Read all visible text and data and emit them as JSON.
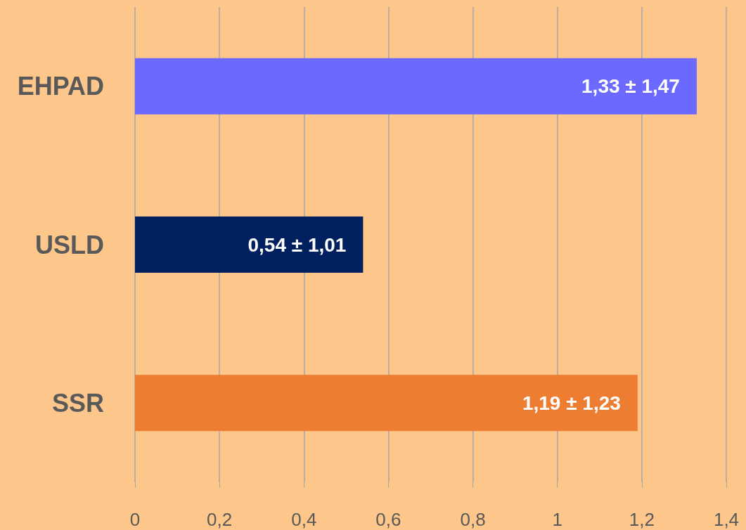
{
  "chart_data": {
    "type": "bar",
    "orientation": "horizontal",
    "categories": [
      "EHPAD",
      "USLD",
      "SSR"
    ],
    "values": [
      1.33,
      0.54,
      1.19
    ],
    "colors": [
      "#6b69ff",
      "#002060",
      "#ed7d31"
    ],
    "value_labels": [
      "1,33 ± 1,47",
      "0,54 ± 1,01",
      "1,19 ± 1,23"
    ],
    "xlim": [
      0,
      1.4
    ],
    "xticks": [
      0,
      {
        "value": 0.2,
        "label": "0,2"
      },
      {
        "value": 0.4,
        "label": "0,4"
      },
      {
        "value": 0.6,
        "label": "0,6"
      },
      {
        "value": 0.8,
        "label": "0,8"
      },
      1,
      {
        "value": 1.2,
        "label": "1,2"
      },
      {
        "value": 1.4,
        "label": "1,4"
      }
    ],
    "grid": "x"
  }
}
